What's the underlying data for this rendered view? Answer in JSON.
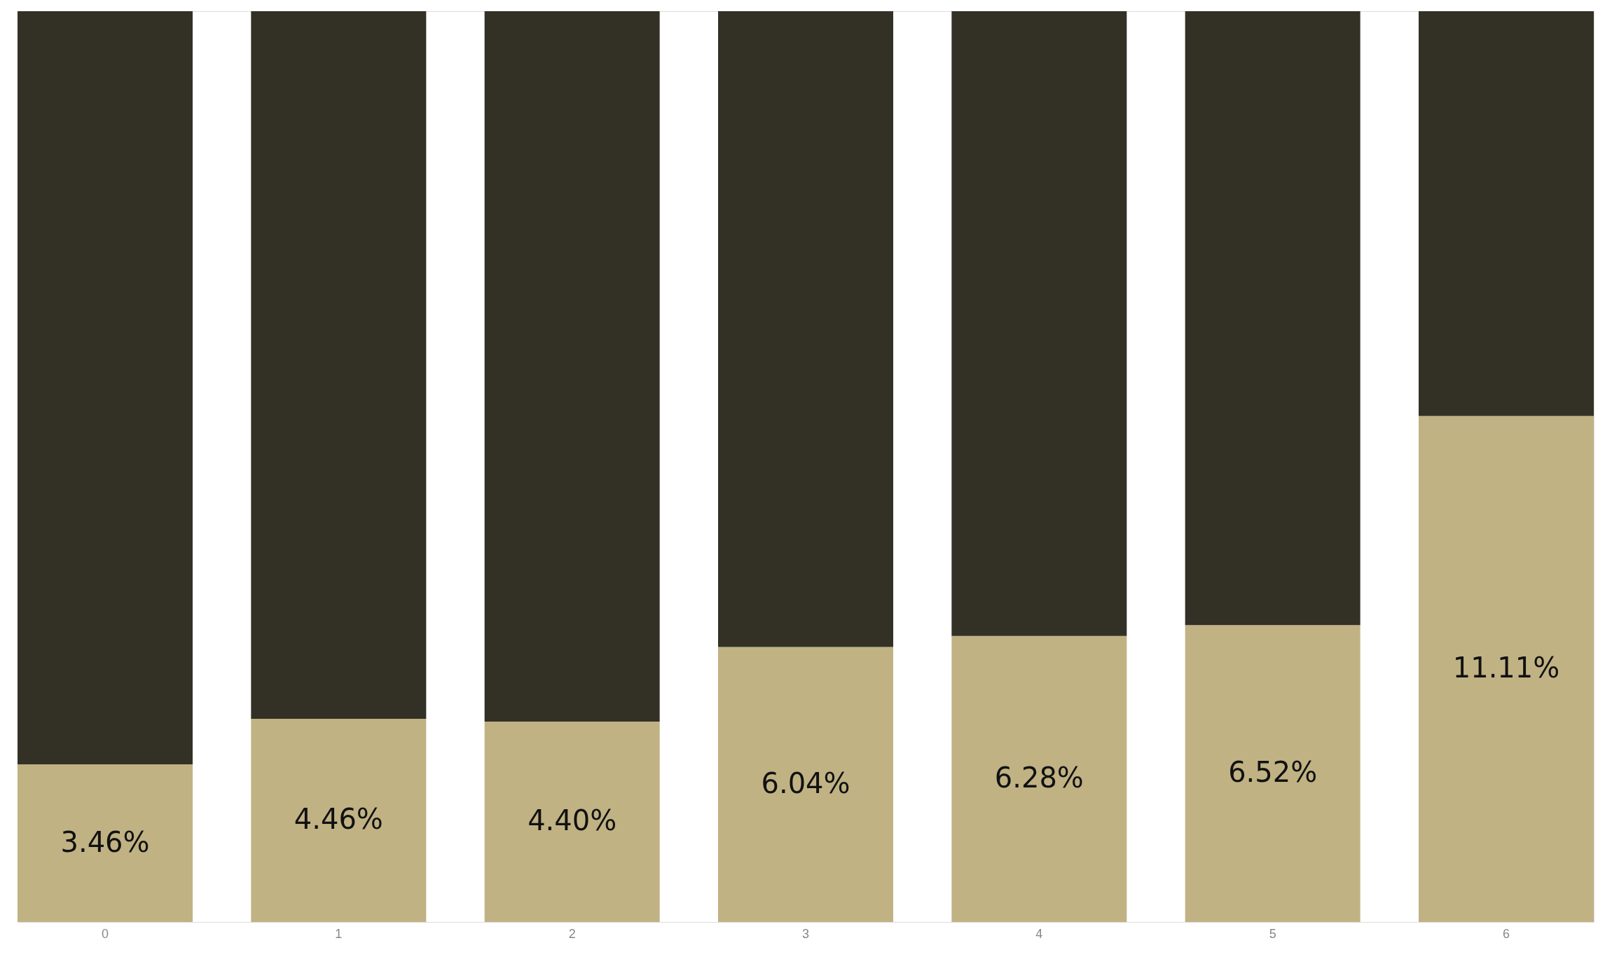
{
  "chart_data": {
    "type": "bar",
    "stacked": true,
    "categories": [
      "0",
      "1",
      "2",
      "3",
      "4",
      "5",
      "6"
    ],
    "series": [
      {
        "color": "#c0b283",
        "values": [
          3.46,
          4.46,
          4.4,
          6.04,
          6.28,
          6.52,
          11.11
        ],
        "value_labels": [
          "3.46%",
          "4.46%",
          "4.40%",
          "6.04%",
          "6.28%",
          "6.52%",
          "11.11%"
        ]
      },
      {
        "color": "#333026",
        "values": [
          16.54,
          15.54,
          15.6,
          13.96,
          13.72,
          13.48,
          8.89
        ]
      }
    ],
    "ylim": [
      0,
      20
    ],
    "tick_labels": "x"
  }
}
